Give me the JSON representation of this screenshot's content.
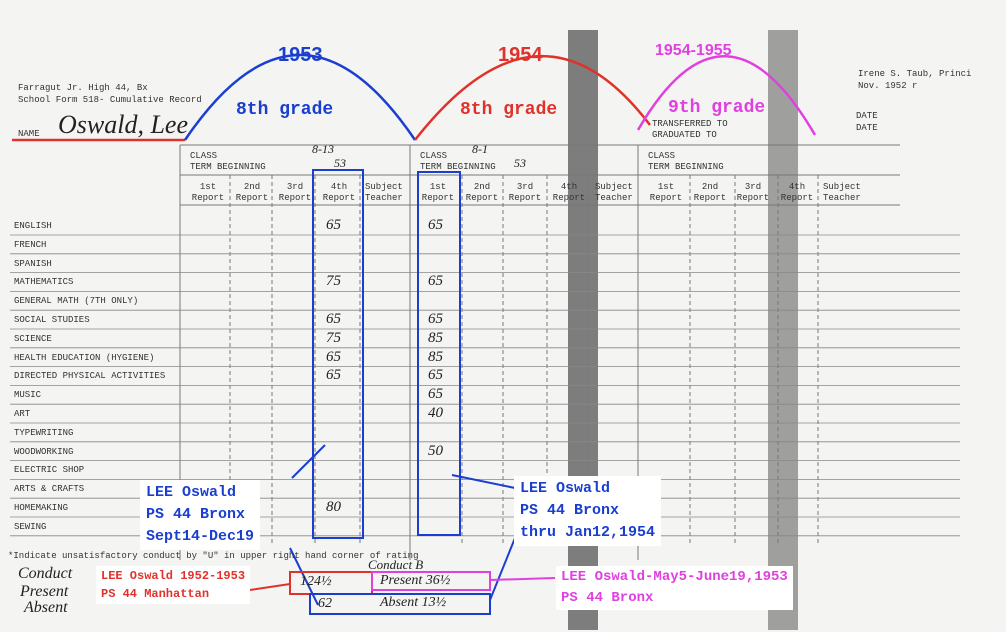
{
  "header": {
    "school": "Farragut Jr. High 44, Bx",
    "form": "School Form 518- Cumulative Record",
    "name_label": "NAME",
    "name": "Oswald, Lee",
    "principal": "Irene S. Taub, Princi",
    "date": "Nov. 1952 r",
    "transferred": "TRANSFERRED TO",
    "graduated": "GRADUATED TO",
    "date_label_1": "DATE",
    "date_label_2": "DATE"
  },
  "years": [
    {
      "year": "1953",
      "grade": "8th grade"
    },
    {
      "year": "1954",
      "grade": "8th grade"
    },
    {
      "year": "1954-1955",
      "grade": "9th grade"
    }
  ],
  "terms": [
    {
      "class": "CLASS",
      "term": "TERM BEGINNING",
      "class_hand": "8-13",
      "term_hand": "53",
      "reports": [
        "1st Report",
        "2nd Report",
        "3rd Report",
        "4th Report"
      ],
      "teacher": "Subject Teacher"
    },
    {
      "class": "CLASS",
      "term": "TERM BEGINNING",
      "class_hand": "8-1",
      "term_hand": "53",
      "reports": [
        "1st Report",
        "2nd Report",
        "3rd Report",
        "4th Report"
      ],
      "teacher": "Subject Teacher"
    },
    {
      "class": "CLASS",
      "term": "TERM BEGINNING",
      "reports": [
        "1st Report",
        "2nd Report",
        "3rd Report",
        "4th Report"
      ],
      "teacher": "Subject Teacher"
    }
  ],
  "subjects": [
    {
      "name": "ENGLISH",
      "t1": "65",
      "t2": "65"
    },
    {
      "name": "FRENCH"
    },
    {
      "name": "SPANISH"
    },
    {
      "name": "MATHEMATICS",
      "t1": "75",
      "t2": "65"
    },
    {
      "name": "GENERAL MATH (7TH ONLY)"
    },
    {
      "name": "SOCIAL STUDIES",
      "t1": "65",
      "t2": "65"
    },
    {
      "name": "SCIENCE",
      "t1": "75",
      "t2": "85"
    },
    {
      "name": "HEALTH EDUCATION (HYGIENE)",
      "t1": "65",
      "t2": "85"
    },
    {
      "name": "DIRECTED PHYSICAL ACTIVITIES",
      "t1": "65",
      "t2": "65"
    },
    {
      "name": "MUSIC",
      "t2": "65"
    },
    {
      "name": "ART",
      "t2": "40"
    },
    {
      "name": "TYPEWRITING"
    },
    {
      "name": "WOODWORKING",
      "t2": "50"
    },
    {
      "name": "ELECTRIC SHOP"
    },
    {
      "name": "ARTS & CRAFTS"
    },
    {
      "name": "HOMEMAKING",
      "t1": "80"
    },
    {
      "name": "SEWING"
    }
  ],
  "footnote": "*Indicate unsatisfactory conduct by \"U\" in upper right hand corner of rating",
  "bottom": {
    "conduct": "Conduct",
    "present": "Present",
    "absent": "Absent",
    "conduct_hand": "Conduct B",
    "present_t1": "124½",
    "present_t2": "Present 36½",
    "absent_t1": "62",
    "absent_t2": "Absent 13½"
  },
  "callouts": {
    "fall_1953": [
      "LEE Oswald",
      "PS 44 Bronx",
      "Sept14-Dec19"
    ],
    "spring_1954": [
      "LEE Oswald",
      "PS 44 Bronx",
      "thru Jan12,1954"
    ],
    "manhattan": [
      "LEE Oswald 1952-1953",
      "PS 44 Manhattan"
    ],
    "bronx_1953": "LEE Oswald-May5-June19,1953",
    "bronx_1953_school": "PS 44 Bronx"
  }
}
